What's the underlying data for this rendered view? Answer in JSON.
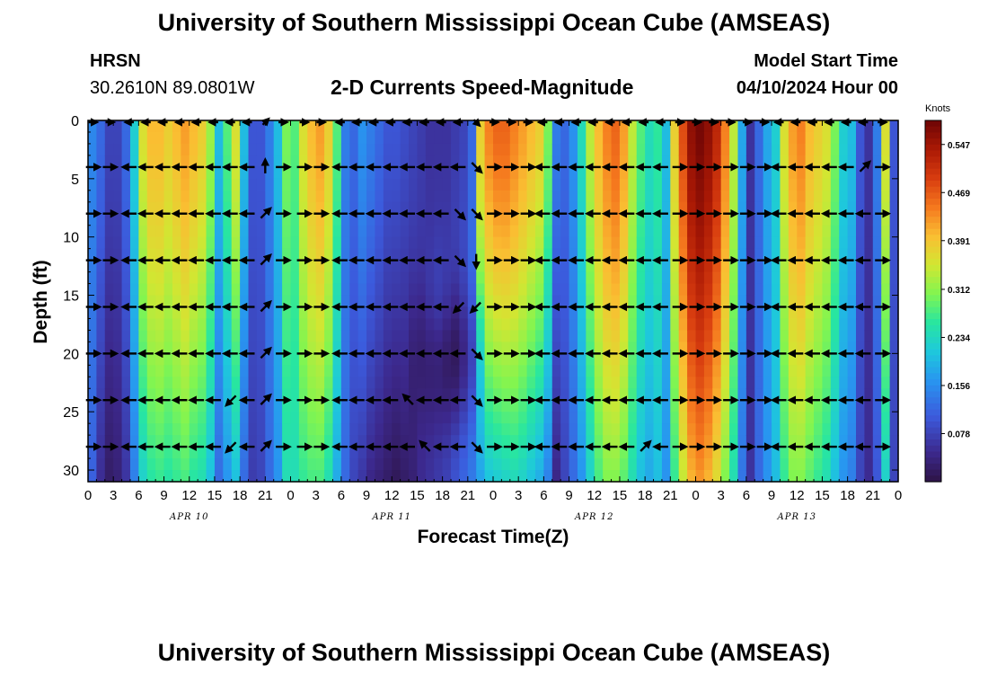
{
  "header": {
    "title": "University of Southern Mississippi Ocean Cube (AMSEAS)",
    "station_id": "HRSN",
    "coordinates": "30.2610N  89.0801W",
    "subtitle": "2-D Currents Speed-Magnitude",
    "model_start_label": "Model Start Time",
    "model_start_value": "04/10/2024 Hour 00"
  },
  "footer": {
    "title": "University of Southern Mississippi Ocean Cube (AMSEAS)"
  },
  "chart_data": {
    "type": "heatmap",
    "title": "2-D Currents Speed-Magnitude",
    "xlabel": "Forecast Time(Z)",
    "ylabel": "Depth (ft)",
    "xlim": [
      0,
      96
    ],
    "ylim": [
      31,
      0
    ],
    "x_tick_labels": [
      "0",
      "3",
      "6",
      "9",
      "12",
      "15",
      "18",
      "21",
      "0",
      "3",
      "6",
      "9",
      "12",
      "15",
      "18",
      "21",
      "0",
      "3",
      "6",
      "9",
      "12",
      "15",
      "18",
      "21",
      "0",
      "3",
      "6",
      "9",
      "12",
      "15",
      "18",
      "21",
      "0"
    ],
    "day_labels": [
      {
        "label": "APR 10",
        "hour": 12
      },
      {
        "label": "APR 11",
        "hour": 36
      },
      {
        "label": "APR 12",
        "hour": 60
      },
      {
        "label": "APR 13",
        "hour": 84
      }
    ],
    "y_ticks": [
      0,
      5,
      10,
      15,
      20,
      25,
      30
    ],
    "colorbar": {
      "unit": "Knots",
      "min": 0.0,
      "max": 0.586,
      "ticks": [
        0.547,
        0.469,
        0.391,
        0.312,
        0.234,
        0.156,
        0.078
      ]
    },
    "speed_profile_knots": {
      "hours": [
        0,
        1,
        2,
        3,
        4,
        5,
        6,
        7,
        8,
        9,
        10,
        11,
        12,
        13,
        14,
        15,
        16,
        17,
        18,
        19,
        20,
        21,
        22,
        23,
        24,
        25,
        26,
        27,
        28,
        29,
        30,
        31,
        32,
        33,
        34,
        35,
        36,
        37,
        38,
        39,
        40,
        41,
        42,
        43,
        44,
        45,
        46,
        47,
        48,
        49,
        50,
        51,
        52,
        53,
        54,
        55,
        56,
        57,
        58,
        59,
        60,
        61,
        62,
        63,
        64,
        65,
        66,
        67,
        68,
        69,
        70,
        71,
        72,
        73,
        74,
        75,
        76,
        77,
        78,
        79,
        80,
        81,
        82,
        83,
        84,
        85,
        86,
        87,
        88,
        89,
        90,
        91,
        92,
        93,
        94,
        95,
        96
      ],
      "surface": [
        0.15,
        0.12,
        0.08,
        0.08,
        0.12,
        0.22,
        0.36,
        0.4,
        0.4,
        0.38,
        0.4,
        0.42,
        0.4,
        0.38,
        0.32,
        0.2,
        0.28,
        0.36,
        0.2,
        0.1,
        0.1,
        0.14,
        0.2,
        0.3,
        0.28,
        0.36,
        0.4,
        0.42,
        0.38,
        0.28,
        0.14,
        0.12,
        0.16,
        0.14,
        0.12,
        0.1,
        0.1,
        0.09,
        0.08,
        0.07,
        0.06,
        0.06,
        0.06,
        0.07,
        0.08,
        0.12,
        0.38,
        0.44,
        0.46,
        0.46,
        0.44,
        0.42,
        0.4,
        0.38,
        0.3,
        0.14,
        0.12,
        0.16,
        0.24,
        0.34,
        0.4,
        0.44,
        0.46,
        0.42,
        0.34,
        0.28,
        0.24,
        0.26,
        0.2,
        0.38,
        0.48,
        0.56,
        0.58,
        0.56,
        0.52,
        0.44,
        0.34,
        0.18,
        0.06,
        0.12,
        0.18,
        0.22,
        0.36,
        0.42,
        0.44,
        0.4,
        0.38,
        0.36,
        0.3,
        0.22,
        0.2,
        0.1,
        0.06,
        0.14,
        0.36,
        0.1,
        0.22
      ],
      "bottom": [
        0.11,
        0.05,
        0.02,
        0.03,
        0.06,
        0.14,
        0.22,
        0.25,
        0.26,
        0.25,
        0.26,
        0.27,
        0.25,
        0.24,
        0.2,
        0.12,
        0.16,
        0.2,
        0.12,
        0.07,
        0.08,
        0.12,
        0.16,
        0.24,
        0.24,
        0.26,
        0.27,
        0.27,
        0.24,
        0.18,
        0.12,
        0.08,
        0.06,
        0.04,
        0.03,
        0.02,
        0.01,
        0.02,
        0.03,
        0.05,
        0.06,
        0.07,
        0.08,
        0.1,
        0.12,
        0.14,
        0.17,
        0.2,
        0.21,
        0.22,
        0.23,
        0.22,
        0.2,
        0.18,
        0.14,
        0.04,
        0.08,
        0.12,
        0.16,
        0.22,
        0.27,
        0.3,
        0.3,
        0.28,
        0.24,
        0.2,
        0.18,
        0.2,
        0.16,
        0.26,
        0.34,
        0.4,
        0.42,
        0.4,
        0.36,
        0.3,
        0.24,
        0.13,
        0.06,
        0.12,
        0.16,
        0.2,
        0.26,
        0.3,
        0.3,
        0.28,
        0.26,
        0.24,
        0.2,
        0.16,
        0.14,
        0.08,
        0.05,
        0.1,
        0.22,
        0.08,
        0.16
      ],
      "core_depth_ft": 16,
      "core_boost": [
        0,
        0,
        0,
        0,
        0,
        0,
        0,
        0,
        0,
        0,
        0,
        0,
        0,
        0,
        0,
        0,
        0,
        0,
        0,
        0,
        0,
        0,
        0,
        0,
        0,
        0,
        0,
        0,
        0,
        0,
        0,
        0,
        0,
        0,
        0,
        0,
        0,
        0,
        0,
        0,
        0.02,
        0.03,
        0.02,
        0,
        0,
        0,
        0,
        0,
        0,
        0,
        0,
        0,
        0,
        0,
        0,
        0,
        0,
        0,
        0,
        0,
        0,
        0,
        0,
        0,
        0,
        0,
        0,
        0,
        0,
        0,
        0,
        0,
        0,
        0,
        0,
        0,
        0,
        0,
        0,
        0,
        0,
        0,
        0,
        0,
        0,
        0,
        0,
        0,
        0,
        0,
        0,
        0,
        0,
        0,
        0,
        0,
        0
      ],
      "dark_core": [
        0,
        0,
        0,
        0,
        0,
        0,
        0,
        0,
        0,
        0,
        0,
        0,
        0,
        0,
        0,
        0,
        0,
        0,
        0,
        0,
        0,
        0,
        0,
        0,
        0,
        0,
        0,
        0,
        0,
        0,
        0,
        0,
        0,
        0,
        0,
        0,
        0,
        0,
        0.02,
        0.03,
        0.04,
        0.05,
        0.06,
        0.07,
        0.06,
        0.05,
        0.04,
        0,
        0,
        0,
        0,
        0,
        0,
        0,
        0,
        0,
        0,
        0,
        0,
        0,
        0,
        0,
        0,
        0,
        0,
        0,
        0,
        0,
        0,
        0,
        0,
        0,
        0,
        0,
        0,
        0,
        0,
        0,
        0,
        0,
        0,
        0,
        0,
        0,
        0,
        0,
        0,
        0,
        0,
        0,
        0,
        0,
        0,
        0,
        0,
        0,
        0
      ]
    },
    "vector_depths_ft": [
      0,
      4,
      8,
      12,
      16,
      20,
      24,
      28
    ],
    "vector_hours": [
      0.5,
      2.5,
      5,
      7,
      9,
      11,
      13,
      15,
      17,
      19,
      21,
      23,
      25.5,
      27.5,
      30,
      32,
      34,
      36,
      38,
      40,
      42,
      44,
      46,
      48,
      50,
      52,
      54,
      56,
      58,
      60,
      62,
      64,
      66,
      68,
      70,
      72,
      74,
      76,
      78,
      80,
      82,
      84,
      86,
      88,
      90,
      92,
      94
    ],
    "vector_direction_by_hour": [
      "E",
      "E",
      "W",
      "W",
      "W",
      "W",
      "W",
      "W",
      "W",
      "W",
      "NE",
      "E",
      "E",
      "E",
      "W",
      "W",
      "W",
      "W",
      "W",
      "W",
      "W",
      "W",
      "SE",
      "E",
      "E",
      "E",
      "W",
      "W",
      "W",
      "W",
      "W",
      "W",
      "W",
      "W",
      "E",
      "E",
      "E",
      "E",
      "E",
      "E",
      "W",
      "W",
      "W",
      "W",
      "W",
      "W",
      "E"
    ],
    "vector_overrides": [
      {
        "hour": 17,
        "depth": 24,
        "dir": "SW"
      },
      {
        "hour": 17,
        "depth": 28,
        "dir": "SW"
      },
      {
        "hour": 17,
        "depth": 20,
        "dir": "W"
      },
      {
        "hour": 21,
        "depth": 4,
        "dir": "N"
      },
      {
        "hour": 21,
        "depth": 8,
        "dir": "NE"
      },
      {
        "hour": 44,
        "depth": 12,
        "dir": "SE"
      },
      {
        "hour": 46,
        "depth": 12,
        "dir": "S"
      },
      {
        "hour": 44,
        "depth": 16,
        "dir": "SW"
      },
      {
        "hour": 46,
        "depth": 16,
        "dir": "SW"
      },
      {
        "hour": 46,
        "depth": 4,
        "dir": "SE"
      },
      {
        "hour": 44,
        "depth": 8,
        "dir": "SE"
      },
      {
        "hour": 40,
        "depth": 28,
        "dir": "NW"
      },
      {
        "hour": 38,
        "depth": 24,
        "dir": "NW"
      },
      {
        "hour": 66,
        "depth": 28,
        "dir": "NE"
      },
      {
        "hour": 92,
        "depth": 4,
        "dir": "NE"
      }
    ]
  }
}
